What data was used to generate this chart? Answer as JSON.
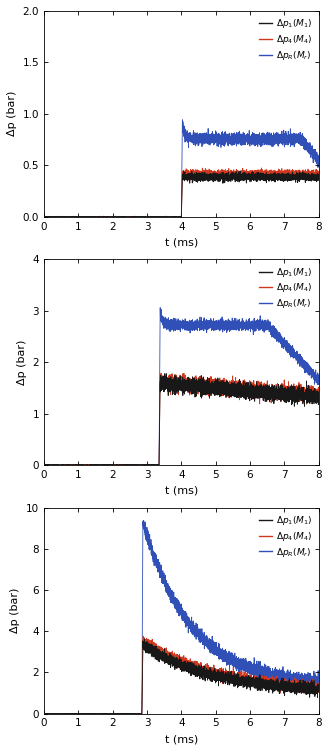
{
  "panels": [
    {
      "ylim": [
        0,
        2.0
      ],
      "yticks": [
        0.0,
        0.5,
        1.0,
        1.5,
        2.0
      ],
      "shock_time": 4.0,
      "blue_peak": 0.92,
      "blue_plateau": 0.755,
      "blue_end": 0.54,
      "blue_drop_start": 7.5,
      "black_level": 0.385,
      "red_level": 0.415,
      "noise_br": 0.018,
      "noise_blue": 0.028,
      "xlim": [
        0,
        8
      ],
      "xticks": [
        0,
        1,
        2,
        3,
        4,
        5,
        6,
        7,
        8
      ]
    },
    {
      "ylim": [
        0,
        4.0
      ],
      "yticks": [
        0.0,
        1.0,
        2.0,
        3.0,
        4.0
      ],
      "shock_time": 3.35,
      "blue_peak": 3.0,
      "blue_plateau": 2.72,
      "blue_end": 1.65,
      "blue_drop_start": 6.5,
      "black_level": 1.58,
      "red_level": 1.62,
      "noise_br": 0.07,
      "noise_blue": 0.05,
      "xlim": [
        0,
        8
      ],
      "xticks": [
        0,
        1,
        2,
        3,
        4,
        5,
        6,
        7,
        8
      ]
    },
    {
      "ylim": [
        0,
        10.0
      ],
      "yticks": [
        0.0,
        2.0,
        4.0,
        6.0,
        8.0,
        10.0
      ],
      "shock_time": 2.85,
      "blue_peak": 9.3,
      "blue_end": 1.38,
      "blue_decay_rate": 0.72,
      "black_init": 3.35,
      "black_end": 1.0,
      "black_decay": 0.48,
      "red_init": 3.55,
      "red_end": 1.05,
      "red_decay": 0.48,
      "noise_br": 0.13,
      "noise_blue": 0.16,
      "xlim": [
        0,
        8
      ],
      "xticks": [
        0,
        1,
        2,
        3,
        4,
        5,
        6,
        7,
        8
      ]
    }
  ],
  "color_black": "#181818",
  "color_red": "#d03820",
  "color_blue": "#3050b8",
  "ylabel": "Δp (bar)",
  "xlabel": "t (ms)",
  "lw": 0.6,
  "rise_dur": 0.03
}
